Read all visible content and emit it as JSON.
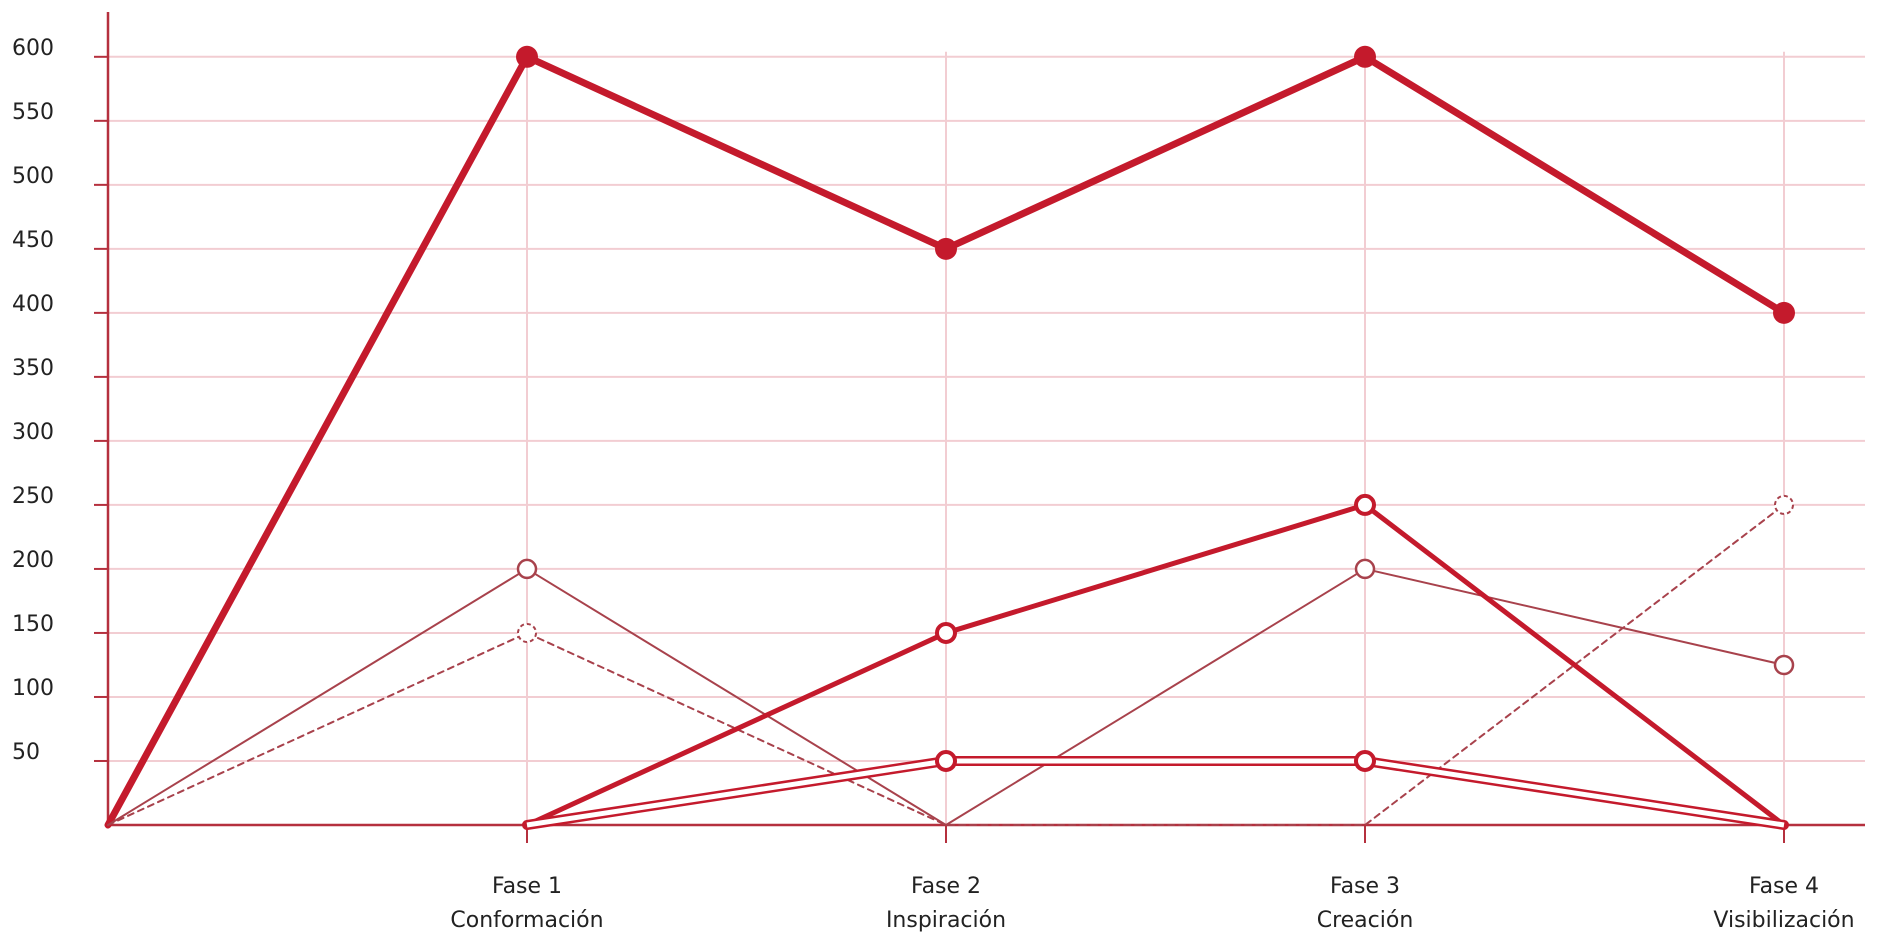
{
  "chart_data": {
    "type": "line",
    "categories": [
      null,
      [
        "Fase 1",
        "Conformación"
      ],
      [
        "Fase 2",
        "Inspiración"
      ],
      [
        "Fase 3",
        "Creación"
      ],
      [
        "Fase 4",
        "Visibilización"
      ]
    ],
    "series": [
      {
        "color": "#c41a2c",
        "width": 7,
        "marker": "filled",
        "values": [
          0,
          600,
          450,
          600,
          400
        ]
      },
      {
        "color": "#a8424c",
        "width": 2,
        "marker": "open",
        "values": [
          0,
          200,
          0,
          200,
          125
        ]
      },
      {
        "color": "#a8424c",
        "width": 2,
        "dash": true,
        "marker": "open-dashed",
        "values": [
          0,
          150,
          0,
          0,
          250
        ]
      },
      {
        "color": "#c41a2c",
        "width": 5,
        "marker": "open-thick",
        "values": [
          null,
          0,
          150,
          250,
          0
        ]
      },
      {
        "color": "#c41a2c",
        "width": 10,
        "double": true,
        "marker": "open-thick",
        "values": [
          null,
          0,
          50,
          50,
          0
        ]
      }
    ],
    "ylim": [
      0,
      635
    ],
    "yticks": [
      50,
      100,
      150,
      200,
      250,
      300,
      350,
      400,
      450,
      500,
      550,
      600
    ],
    "grid": true,
    "grid_color": "#f2cdd2",
    "axis_color": "#b5303e"
  }
}
